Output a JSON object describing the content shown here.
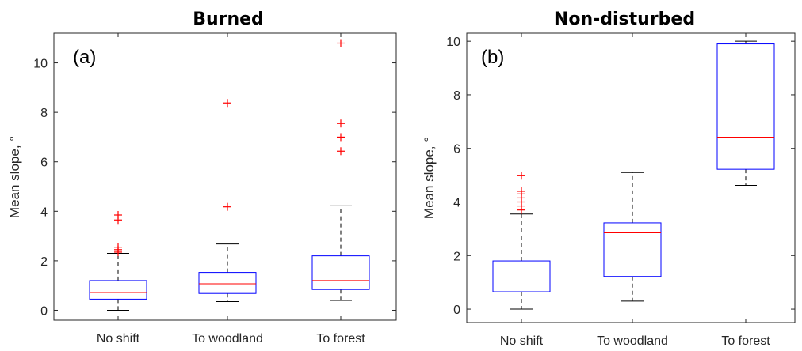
{
  "chart_data": [
    {
      "type": "box",
      "panel_label": "(a)",
      "title": "Burned",
      "ylabel": "Mean slope, °",
      "xlabel": "",
      "ylim": [
        -0.4,
        11.2
      ],
      "yticks": [
        "0",
        "2",
        "4",
        "6",
        "8",
        "10"
      ],
      "ytick_values": [
        0,
        2,
        4,
        6,
        8,
        10
      ],
      "categories": [
        "No shift",
        "To woodland",
        "To forest"
      ],
      "boxes": [
        {
          "category": "No shift",
          "whisker_low": 0.0,
          "q1": 0.45,
          "median": 0.72,
          "q3": 1.2,
          "whisker_high": 2.3,
          "outliers": [
            2.35,
            2.45,
            2.55,
            3.65,
            3.85
          ]
        },
        {
          "category": "To woodland",
          "whisker_low": 0.35,
          "q1": 0.68,
          "median": 1.07,
          "q3": 1.53,
          "whisker_high": 2.68,
          "outliers": [
            4.18,
            8.38
          ]
        },
        {
          "category": "To forest",
          "whisker_low": 0.4,
          "q1": 0.84,
          "median": 1.2,
          "q3": 2.2,
          "whisker_high": 4.22,
          "outliers": [
            6.43,
            7.0,
            7.55,
            10.8
          ]
        }
      ],
      "colors": {
        "box": "#0000ff",
        "median": "#ff0000",
        "outlier": "#ff0000",
        "whisker": "#000000"
      }
    },
    {
      "type": "box",
      "panel_label": "(b)",
      "title": "Non-disturbed",
      "ylabel": "Mean slope, °",
      "xlabel": "",
      "ylim": [
        -0.5,
        10.3
      ],
      "yticks": [
        "0",
        "2",
        "4",
        "6",
        "8",
        "10"
      ],
      "ytick_values": [
        0,
        2,
        4,
        6,
        8,
        10
      ],
      "categories": [
        "No shift",
        "To woodland",
        "To forest"
      ],
      "boxes": [
        {
          "category": "No shift",
          "whisker_low": 0.0,
          "q1": 0.65,
          "median": 1.05,
          "q3": 1.8,
          "whisker_high": 3.55,
          "outliers": [
            3.7,
            3.85,
            4.0,
            4.15,
            4.3,
            4.4,
            4.98
          ]
        },
        {
          "category": "To woodland",
          "whisker_low": 0.3,
          "q1": 1.22,
          "median": 2.85,
          "q3": 3.22,
          "whisker_high": 5.1,
          "outliers": []
        },
        {
          "category": "To forest",
          "whisker_low": 4.62,
          "q1": 5.22,
          "median": 6.42,
          "q3": 9.9,
          "whisker_high": 10.0,
          "outliers": []
        }
      ],
      "colors": {
        "box": "#0000ff",
        "median": "#ff0000",
        "outlier": "#ff0000",
        "whisker": "#000000"
      }
    }
  ]
}
